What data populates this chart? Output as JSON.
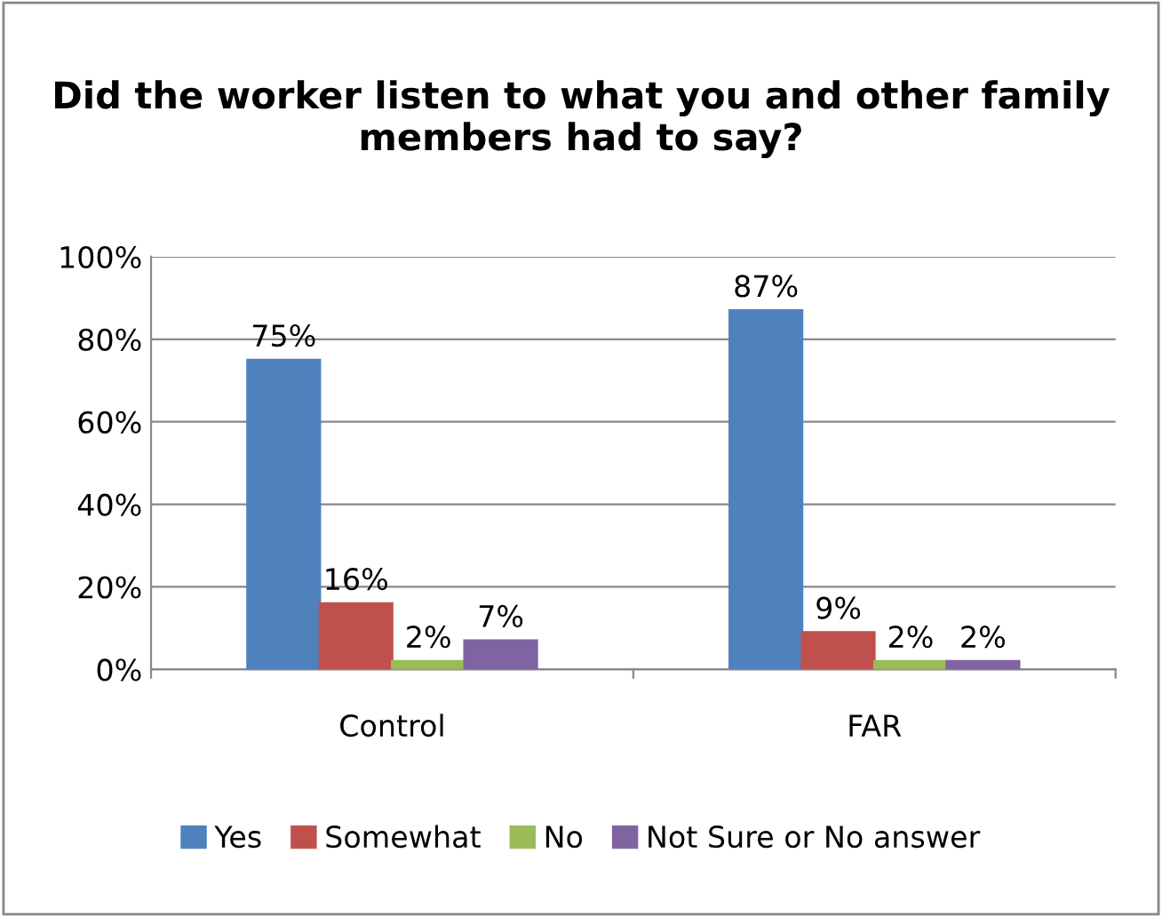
{
  "chart_data": {
    "type": "bar",
    "title": "Did the worker listen to what you and other family members had to say?",
    "categories": [
      "Control",
      "FAR"
    ],
    "series": [
      {
        "name": "Yes",
        "color": "#4f81bd",
        "values": [
          75,
          87
        ],
        "value_labels": [
          "75%",
          "87%"
        ]
      },
      {
        "name": "Somewhat",
        "color": "#c0504d",
        "values": [
          16,
          9
        ],
        "value_labels": [
          "16%",
          "9%"
        ]
      },
      {
        "name": "No",
        "color": "#9bbb59",
        "values": [
          2,
          2
        ],
        "value_labels": [
          "2%",
          "2%"
        ]
      },
      {
        "name": "Not Sure or No answer",
        "color": "#8064a2",
        "values": [
          7,
          2
        ],
        "value_labels": [
          "7%",
          "2%"
        ]
      }
    ],
    "ylim": [
      0,
      100
    ],
    "yticks": [
      {
        "value": 0,
        "label": "0%"
      },
      {
        "value": 20,
        "label": "20%"
      },
      {
        "value": 40,
        "label": "40%"
      },
      {
        "value": 60,
        "label": "60%"
      },
      {
        "value": 80,
        "label": "80%"
      },
      {
        "value": 100,
        "label": "100%"
      }
    ],
    "grid": "y",
    "legend": "bottom"
  }
}
